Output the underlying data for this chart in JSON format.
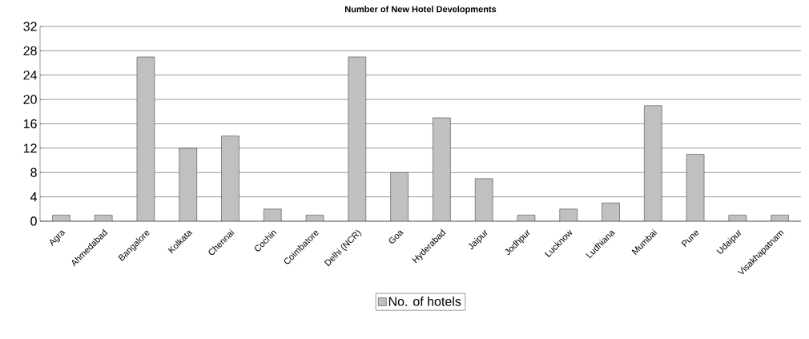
{
  "chart_data": {
    "type": "bar",
    "title": "Number of New Hotel Developments",
    "categories": [
      "Agra",
      "Ahmedabad",
      "Bangalore",
      "Kolkata",
      "Chennai",
      "Cochin",
      "Coimbatore",
      "Delhi (NCR)",
      "Goa",
      "Hyderabad",
      "Jaipur",
      "Jodhpur",
      "Lucknow",
      "Ludhiana",
      "Mumbai",
      "Pune",
      "Udaipur",
      "Visakhapatnam"
    ],
    "series": [
      {
        "name": "No. of hotels",
        "color": "#c0c0c0",
        "values": [
          1,
          1,
          27,
          12,
          14,
          2,
          1,
          27,
          8,
          17,
          7,
          1,
          2,
          3,
          19,
          11,
          1,
          1
        ]
      }
    ],
    "ylim": [
      0,
      32
    ],
    "yticks": [
      0,
      4,
      8,
      12,
      16,
      20,
      24,
      28,
      32
    ],
    "grid": "y",
    "legend": "bottom"
  }
}
